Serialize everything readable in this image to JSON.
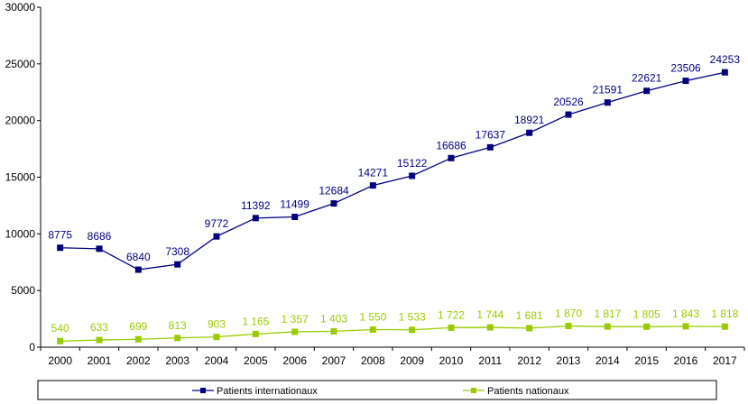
{
  "chart_data": {
    "type": "line",
    "title": "",
    "xlabel": "",
    "ylabel": "",
    "ylim": [
      0,
      30000
    ],
    "yticks": [
      0,
      5000,
      10000,
      15000,
      20000,
      25000,
      30000
    ],
    "grid": false,
    "legend_position": "bottom",
    "categories": [
      "2000",
      "2001",
      "2002",
      "2003",
      "2004",
      "2005",
      "2006",
      "2007",
      "2008",
      "2009",
      "2010",
      "2011",
      "2012",
      "2013",
      "2014",
      "2015",
      "2016",
      "2017"
    ],
    "series": [
      {
        "name": "Patients internationaux",
        "color": "#000080",
        "marker": "square",
        "values": [
          8775,
          8686,
          6840,
          7308,
          9772,
          11392,
          11499,
          12684,
          14271,
          15122,
          16686,
          17637,
          18921,
          20526,
          21591,
          22621,
          23506,
          24253
        ],
        "labels": [
          "8775",
          "8686",
          "6840",
          "7308",
          "9772",
          "11392",
          "11499",
          "12684",
          "14271",
          "15122",
          "16686",
          "17637",
          "18921",
          "20526",
          "21591",
          "22621",
          "23506",
          "24253"
        ]
      },
      {
        "name": "Patients nationaux",
        "color": "#99CC00",
        "marker": "square",
        "values": [
          540,
          633,
          699,
          813,
          903,
          1165,
          1357,
          1403,
          1550,
          1533,
          1722,
          1744,
          1681,
          1870,
          1817,
          1805,
          1843,
          1818
        ],
        "labels": [
          "540",
          "633",
          "699",
          "813",
          "903",
          "1 165",
          "1 357",
          "1 403",
          "1 550",
          "1 533",
          "1 722",
          "1 744",
          "1 681",
          "1 870",
          "1 817",
          "1 805",
          "1 843",
          "1 818"
        ]
      }
    ]
  }
}
